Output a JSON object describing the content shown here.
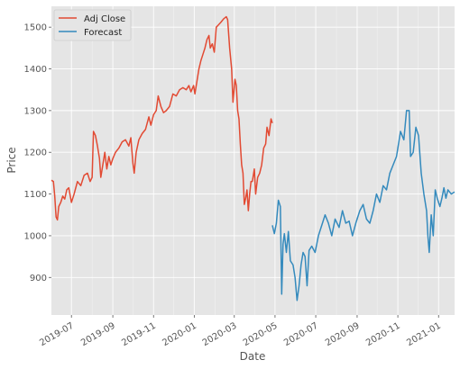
{
  "chart_data": {
    "type": "line",
    "xlabel": "Date",
    "ylabel": "Price",
    "xlim": [
      "2019-06-01",
      "2021-01-25"
    ],
    "ylim": [
      810,
      1550
    ],
    "x_tick_dates": [
      "2019-07-01",
      "2019-09-01",
      "2019-11-01",
      "2020-01-01",
      "2020-03-01",
      "2020-05-01",
      "2020-07-01",
      "2020-09-01",
      "2020-11-01",
      "2021-01-01"
    ],
    "x_tick_labels": [
      "2019-07",
      "2019-09",
      "2019-11",
      "2020-01",
      "2020-03",
      "2020-05",
      "2020-07",
      "2020-09",
      "2020-11",
      "2021-01"
    ],
    "y_ticks": [
      900,
      1000,
      1100,
      1200,
      1300,
      1400,
      1500
    ],
    "grid": true,
    "legend_position": "top-left",
    "colors": {
      "background": "#e5e5e5",
      "grid": "#ffffff",
      "adj_close": "#e24a33",
      "forecast": "#348abd"
    },
    "series": [
      {
        "name": "Adj Close",
        "color_key": "adj_close",
        "points": [
          [
            "2019-06-01",
            1133
          ],
          [
            "2019-06-04",
            1130
          ],
          [
            "2019-06-06",
            1095
          ],
          [
            "2019-06-08",
            1045
          ],
          [
            "2019-06-10",
            1038
          ],
          [
            "2019-06-12",
            1070
          ],
          [
            "2019-06-15",
            1080
          ],
          [
            "2019-06-18",
            1095
          ],
          [
            "2019-06-21",
            1088
          ],
          [
            "2019-06-24",
            1110
          ],
          [
            "2019-06-27",
            1115
          ],
          [
            "2019-07-01",
            1080
          ],
          [
            "2019-07-05",
            1100
          ],
          [
            "2019-07-10",
            1130
          ],
          [
            "2019-07-15",
            1120
          ],
          [
            "2019-07-20",
            1145
          ],
          [
            "2019-07-25",
            1150
          ],
          [
            "2019-07-29",
            1130
          ],
          [
            "2019-08-01",
            1140
          ],
          [
            "2019-08-03",
            1250
          ],
          [
            "2019-08-06",
            1240
          ],
          [
            "2019-08-09",
            1215
          ],
          [
            "2019-08-12",
            1185
          ],
          [
            "2019-08-14",
            1140
          ],
          [
            "2019-08-17",
            1170
          ],
          [
            "2019-08-20",
            1200
          ],
          [
            "2019-08-23",
            1160
          ],
          [
            "2019-08-26",
            1190
          ],
          [
            "2019-08-29",
            1170
          ],
          [
            "2019-09-01",
            1185
          ],
          [
            "2019-09-05",
            1200
          ],
          [
            "2019-09-10",
            1210
          ],
          [
            "2019-09-15",
            1225
          ],
          [
            "2019-09-20",
            1230
          ],
          [
            "2019-09-25",
            1215
          ],
          [
            "2019-09-28",
            1235
          ],
          [
            "2019-10-01",
            1175
          ],
          [
            "2019-10-03",
            1150
          ],
          [
            "2019-10-06",
            1200
          ],
          [
            "2019-10-10",
            1230
          ],
          [
            "2019-10-15",
            1245
          ],
          [
            "2019-10-20",
            1255
          ],
          [
            "2019-10-25",
            1285
          ],
          [
            "2019-10-28",
            1265
          ],
          [
            "2019-11-01",
            1290
          ],
          [
            "2019-11-05",
            1300
          ],
          [
            "2019-11-08",
            1335
          ],
          [
            "2019-11-12",
            1310
          ],
          [
            "2019-11-16",
            1295
          ],
          [
            "2019-11-20",
            1300
          ],
          [
            "2019-11-25",
            1310
          ],
          [
            "2019-11-30",
            1340
          ],
          [
            "2019-12-05",
            1335
          ],
          [
            "2019-12-10",
            1350
          ],
          [
            "2019-12-15",
            1355
          ],
          [
            "2019-12-20",
            1350
          ],
          [
            "2019-12-24",
            1360
          ],
          [
            "2019-12-27",
            1345
          ],
          [
            "2019-12-31",
            1360
          ],
          [
            "2020-01-02",
            1340
          ],
          [
            "2020-01-05",
            1370
          ],
          [
            "2020-01-08",
            1400
          ],
          [
            "2020-01-11",
            1420
          ],
          [
            "2020-01-14",
            1435
          ],
          [
            "2020-01-17",
            1450
          ],
          [
            "2020-01-20",
            1470
          ],
          [
            "2020-01-23",
            1480
          ],
          [
            "2020-01-25",
            1450
          ],
          [
            "2020-01-28",
            1460
          ],
          [
            "2020-01-31",
            1440
          ],
          [
            "2020-02-03",
            1500
          ],
          [
            "2020-02-06",
            1505
          ],
          [
            "2020-02-10",
            1512
          ],
          [
            "2020-02-14",
            1520
          ],
          [
            "2020-02-18",
            1525
          ],
          [
            "2020-02-20",
            1518
          ],
          [
            "2020-02-23",
            1450
          ],
          [
            "2020-02-26",
            1400
          ],
          [
            "2020-02-28",
            1320
          ],
          [
            "2020-03-02",
            1375
          ],
          [
            "2020-03-04",
            1360
          ],
          [
            "2020-03-06",
            1300
          ],
          [
            "2020-03-08",
            1280
          ],
          [
            "2020-03-10",
            1220
          ],
          [
            "2020-03-12",
            1170
          ],
          [
            "2020-03-14",
            1150
          ],
          [
            "2020-03-16",
            1075
          ],
          [
            "2020-03-18",
            1090
          ],
          [
            "2020-03-20",
            1110
          ],
          [
            "2020-03-22",
            1060
          ],
          [
            "2020-03-24",
            1100
          ],
          [
            "2020-03-26",
            1130
          ],
          [
            "2020-03-28",
            1130
          ],
          [
            "2020-03-31",
            1160
          ],
          [
            "2020-04-02",
            1100
          ],
          [
            "2020-04-05",
            1140
          ],
          [
            "2020-04-08",
            1150
          ],
          [
            "2020-04-11",
            1170
          ],
          [
            "2020-04-14",
            1210
          ],
          [
            "2020-04-17",
            1220
          ],
          [
            "2020-04-19",
            1260
          ],
          [
            "2020-04-22",
            1240
          ],
          [
            "2020-04-25",
            1280
          ],
          [
            "2020-04-27",
            1270
          ]
        ]
      },
      {
        "name": "Forecast",
        "color_key": "forecast",
        "points": [
          [
            "2020-04-27",
            1025
          ],
          [
            "2020-04-30",
            1005
          ],
          [
            "2020-05-03",
            1030
          ],
          [
            "2020-05-06",
            1085
          ],
          [
            "2020-05-09",
            1070
          ],
          [
            "2020-05-11",
            860
          ],
          [
            "2020-05-13",
            980
          ],
          [
            "2020-05-15",
            1005
          ],
          [
            "2020-05-18",
            960
          ],
          [
            "2020-05-21",
            1010
          ],
          [
            "2020-05-24",
            940
          ],
          [
            "2020-05-28",
            930
          ],
          [
            "2020-05-31",
            900
          ],
          [
            "2020-06-03",
            845
          ],
          [
            "2020-06-06",
            880
          ],
          [
            "2020-06-09",
            930
          ],
          [
            "2020-06-12",
            960
          ],
          [
            "2020-06-15",
            950
          ],
          [
            "2020-06-18",
            880
          ],
          [
            "2020-06-21",
            965
          ],
          [
            "2020-06-25",
            975
          ],
          [
            "2020-06-30",
            960
          ],
          [
            "2020-07-05",
            1000
          ],
          [
            "2020-07-10",
            1025
          ],
          [
            "2020-07-15",
            1050
          ],
          [
            "2020-07-20",
            1030
          ],
          [
            "2020-07-25",
            1000
          ],
          [
            "2020-07-30",
            1040
          ],
          [
            "2020-08-05",
            1020
          ],
          [
            "2020-08-10",
            1060
          ],
          [
            "2020-08-15",
            1030
          ],
          [
            "2020-08-20",
            1035
          ],
          [
            "2020-08-25",
            1000
          ],
          [
            "2020-08-30",
            1030
          ],
          [
            "2020-09-05",
            1060
          ],
          [
            "2020-09-10",
            1075
          ],
          [
            "2020-09-15",
            1040
          ],
          [
            "2020-09-20",
            1030
          ],
          [
            "2020-09-25",
            1060
          ],
          [
            "2020-09-30",
            1100
          ],
          [
            "2020-10-05",
            1080
          ],
          [
            "2020-10-10",
            1120
          ],
          [
            "2020-10-15",
            1110
          ],
          [
            "2020-10-20",
            1150
          ],
          [
            "2020-10-25",
            1170
          ],
          [
            "2020-10-30",
            1190
          ],
          [
            "2020-11-05",
            1250
          ],
          [
            "2020-11-10",
            1230
          ],
          [
            "2020-11-14",
            1300
          ],
          [
            "2020-11-18",
            1300
          ],
          [
            "2020-11-20",
            1190
          ],
          [
            "2020-11-24",
            1200
          ],
          [
            "2020-11-28",
            1260
          ],
          [
            "2020-12-02",
            1240
          ],
          [
            "2020-12-06",
            1150
          ],
          [
            "2020-12-10",
            1100
          ],
          [
            "2020-12-14",
            1060
          ],
          [
            "2020-12-16",
            1000
          ],
          [
            "2020-12-18",
            960
          ],
          [
            "2020-12-21",
            1050
          ],
          [
            "2020-12-24",
            1000
          ],
          [
            "2020-12-27",
            1110
          ],
          [
            "2020-12-30",
            1090
          ],
          [
            "2021-01-03",
            1070
          ],
          [
            "2021-01-06",
            1090
          ],
          [
            "2021-01-09",
            1115
          ],
          [
            "2021-01-12",
            1090
          ],
          [
            "2021-01-15",
            1110
          ],
          [
            "2021-01-20",
            1100
          ],
          [
            "2021-01-25",
            1105
          ]
        ]
      }
    ]
  }
}
